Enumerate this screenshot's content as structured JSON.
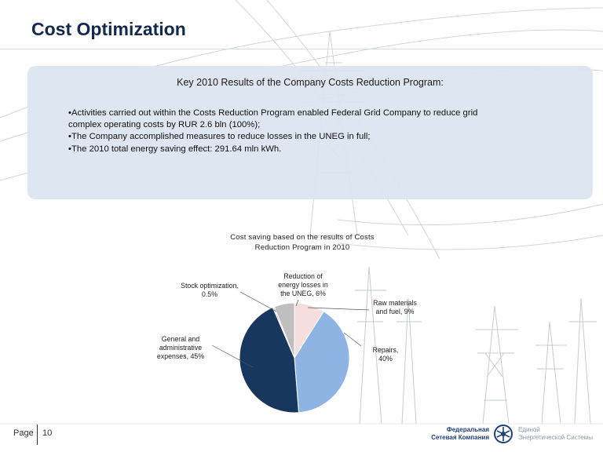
{
  "title": "Cost Optimization",
  "panel": {
    "heading": "Key 2010 Results of the Company Costs Reduction Program:",
    "bullets": [
      {
        "line1": "Activities carried out within the Costs Reduction Program enabled Federal Grid Company to reduce grid",
        "line2": "complex operating costs by RUR 2.6 bln (100%);"
      },
      {
        "line1": "The Company accomplished measures to reduce losses in the UNEG in full;"
      },
      {
        "line1": "The 2010 total energy saving effect: 291.64 mln kWh."
      }
    ]
  },
  "chart_data": {
    "type": "pie",
    "title": "Cost saving based on the results of Costs Reduction Program in 2010",
    "title_lines": [
      "Cost saving based on the results of Costs",
      "Reduction Program in 2010"
    ],
    "slices": [
      {
        "label_lines": [
          "Raw materials",
          "and fuel, 9%"
        ],
        "value": 9,
        "color": "#f7dede"
      },
      {
        "label_lines": [
          "Repairs,",
          "40%"
        ],
        "value": 40,
        "color": "#8db4e2"
      },
      {
        "label_lines": [
          "General and",
          "administrative",
          "expenses, 45%"
        ],
        "value": 45,
        "color": "#17375e"
      },
      {
        "label_lines": [
          "Stock optimization,",
          "0.5%"
        ],
        "value": 0.5,
        "color": "#d9d9d9"
      },
      {
        "label_lines": [
          "Reduction of",
          "energy losses in",
          "the UNEG, 6%"
        ],
        "value": 6,
        "color": "#bfbfbf"
      }
    ],
    "legend": "none"
  },
  "footer": {
    "page_label": "Page",
    "page_number": "10",
    "brand_left": [
      "Федеральная",
      "Сетевая Компания"
    ],
    "brand_right": [
      "Единой",
      "Энергетической Системы"
    ]
  },
  "colors": {
    "title": "#12284c",
    "panel": "#dbe4f0",
    "brand": "#1f3f78"
  }
}
